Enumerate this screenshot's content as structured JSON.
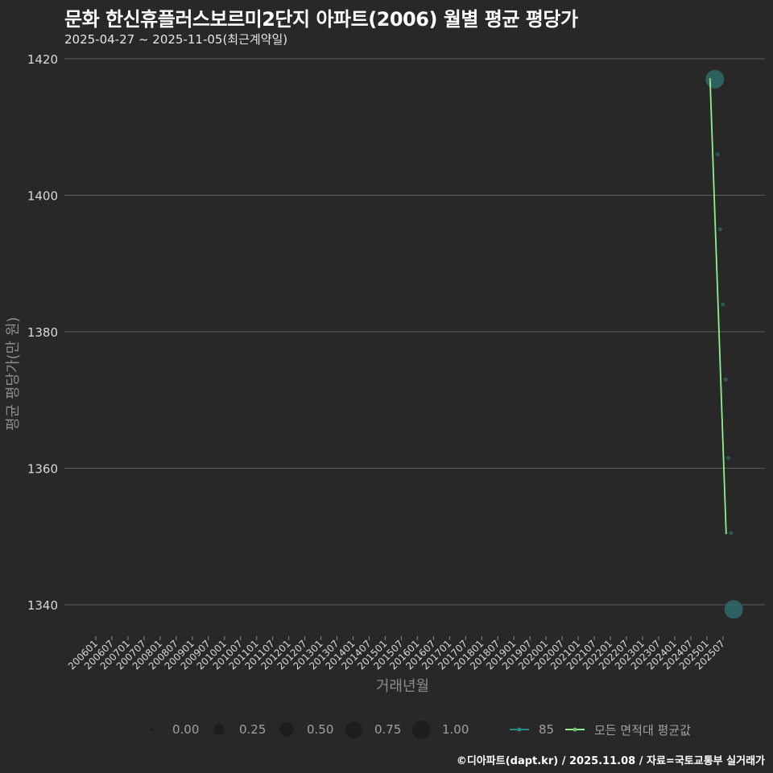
{
  "header": {
    "title": "문화 한신휴플러스보르미2단지 아파트(2006) 월별 평균 평당가",
    "subtitle": "2025-04-27 ~ 2025-11-05(최근계약일)"
  },
  "axes": {
    "y_title": "평균 평당가(만 원)",
    "x_title": "거래년월",
    "y_ticks": [
      "1420",
      "1400",
      "1380",
      "1360",
      "1340"
    ],
    "x_ticks": [
      "200601",
      "200607",
      "200701",
      "200707",
      "200801",
      "200807",
      "200901",
      "200907",
      "201001",
      "201007",
      "201101",
      "201107",
      "201201",
      "201207",
      "201301",
      "201307",
      "201401",
      "201407",
      "201501",
      "201507",
      "201601",
      "201607",
      "201701",
      "201707",
      "201801",
      "201807",
      "201901",
      "201907",
      "202001",
      "202007",
      "202101",
      "202107",
      "202201",
      "202207",
      "202301",
      "202307",
      "202401",
      "202407",
      "202501",
      "202507"
    ]
  },
  "legend": {
    "size": [
      {
        "label": "0.00"
      },
      {
        "label": "0.25"
      },
      {
        "label": "0.50"
      },
      {
        "label": "0.75"
      },
      {
        "label": "1.00"
      }
    ],
    "series": [
      {
        "label": "85",
        "color": "#2a8a8a"
      },
      {
        "label": "모든 면적대 평균값",
        "color": "#90ee90"
      }
    ]
  },
  "footer": {
    "credit": "©디아파트(dapt.kr) / 2025.11.08 / 자료=국토교통부 실거래가"
  },
  "colors": {
    "background": "#282828",
    "grid": "#5a5a5a",
    "series_85": "#2e6b6b",
    "average_line": "#90ee90"
  },
  "chart_data": {
    "type": "line",
    "title": "문화 한신휴플러스보르미2단지 아파트(2006) 월별 평균 평당가",
    "subtitle": "2025-04-27 ~ 2025-11-05(최근계약일)",
    "xlabel": "거래년월",
    "ylabel": "평균 평당가(만 원)",
    "ylim": [
      1337,
      1423
    ],
    "y_ticks": [
      1340,
      1360,
      1380,
      1400,
      1420
    ],
    "grid": true,
    "legend_position": "bottom",
    "series": [
      {
        "name": "85",
        "kind": "scatter (size = relative count)",
        "points": [
          {
            "x": "202504",
            "y": 1417,
            "size": 1.0
          },
          {
            "x": "202505",
            "y": 1406,
            "size": 0.0
          },
          {
            "x": "202506",
            "y": 1395,
            "size": 0.0
          },
          {
            "x": "202507",
            "y": 1384,
            "size": 0.0
          },
          {
            "x": "202508",
            "y": 1373,
            "size": 0.0
          },
          {
            "x": "202509",
            "y": 1361.5,
            "size": 0.0
          },
          {
            "x": "202510",
            "y": 1350.5,
            "size": 0.0
          },
          {
            "x": "202511",
            "y": 1339.3,
            "size": 1.0
          }
        ]
      },
      {
        "name": "모든 면적대 평균값",
        "kind": "line",
        "points": [
          {
            "x": "202504",
            "y": 1417
          },
          {
            "x": "202510",
            "y": 1350.5
          }
        ]
      }
    ]
  }
}
